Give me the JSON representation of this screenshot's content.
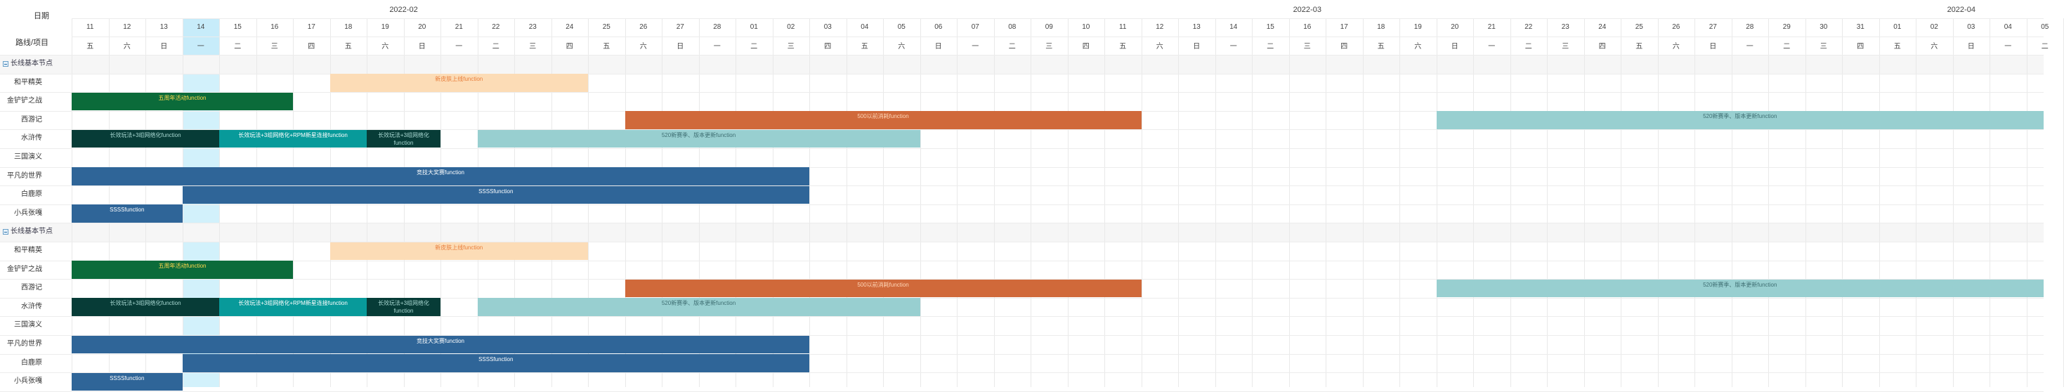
{
  "header": {
    "date_label": "日期",
    "project_label": "路线/项目",
    "months": [
      {
        "label": "2022-02",
        "start_index": 0,
        "end_index": 17
      },
      {
        "label": "2022-03",
        "start_index": 18,
        "end_index": 48
      },
      {
        "label": "2022-04",
        "start_index": 49,
        "end_index": 53
      }
    ]
  },
  "days": [
    {
      "d": "11",
      "w": "五"
    },
    {
      "d": "12",
      "w": "六"
    },
    {
      "d": "13",
      "w": "日"
    },
    {
      "d": "14",
      "w": "一"
    },
    {
      "d": "15",
      "w": "二"
    },
    {
      "d": "16",
      "w": "三"
    },
    {
      "d": "17",
      "w": "四"
    },
    {
      "d": "18",
      "w": "五"
    },
    {
      "d": "19",
      "w": "六"
    },
    {
      "d": "20",
      "w": "日"
    },
    {
      "d": "21",
      "w": "一"
    },
    {
      "d": "22",
      "w": "二"
    },
    {
      "d": "23",
      "w": "三"
    },
    {
      "d": "24",
      "w": "四"
    },
    {
      "d": "25",
      "w": "五"
    },
    {
      "d": "26",
      "w": "六"
    },
    {
      "d": "27",
      "w": "日"
    },
    {
      "d": "28",
      "w": "一"
    },
    {
      "d": "01",
      "w": "二"
    },
    {
      "d": "02",
      "w": "三"
    },
    {
      "d": "03",
      "w": "四"
    },
    {
      "d": "04",
      "w": "五"
    },
    {
      "d": "05",
      "w": "六"
    },
    {
      "d": "06",
      "w": "日"
    },
    {
      "d": "07",
      "w": "一"
    },
    {
      "d": "08",
      "w": "二"
    },
    {
      "d": "09",
      "w": "三"
    },
    {
      "d": "10",
      "w": "四"
    },
    {
      "d": "11",
      "w": "五"
    },
    {
      "d": "12",
      "w": "六"
    },
    {
      "d": "13",
      "w": "日"
    },
    {
      "d": "14",
      "w": "一"
    },
    {
      "d": "15",
      "w": "二"
    },
    {
      "d": "16",
      "w": "三"
    },
    {
      "d": "17",
      "w": "四"
    },
    {
      "d": "18",
      "w": "五"
    },
    {
      "d": "19",
      "w": "六"
    },
    {
      "d": "20",
      "w": "日"
    },
    {
      "d": "21",
      "w": "一"
    },
    {
      "d": "22",
      "w": "二"
    },
    {
      "d": "23",
      "w": "三"
    },
    {
      "d": "24",
      "w": "四"
    },
    {
      "d": "25",
      "w": "五"
    },
    {
      "d": "26",
      "w": "六"
    },
    {
      "d": "27",
      "w": "日"
    },
    {
      "d": "28",
      "w": "一"
    },
    {
      "d": "29",
      "w": "二"
    },
    {
      "d": "30",
      "w": "三"
    },
    {
      "d": "31",
      "w": "四"
    },
    {
      "d": "01",
      "w": "五"
    },
    {
      "d": "02",
      "w": "六"
    },
    {
      "d": "03",
      "w": "日"
    },
    {
      "d": "04",
      "w": "一"
    },
    {
      "d": "05",
      "w": "二"
    }
  ],
  "today_index": 3,
  "watermark_text": "",
  "sections": [
    {
      "label": "长线基本节点",
      "rows": [
        {
          "label": "和平精英",
          "bars": [
            {
              "start": 7,
              "end": 13,
              "text": "新皮肤上线function",
              "color": "#fcdcb6",
              "text_color": "#e87d3a"
            }
          ]
        },
        {
          "label": "金铲铲之战",
          "bars": [
            {
              "start": 0,
              "end": 5,
              "text": "五周年活动function",
              "color": "#0b6b3a",
              "text_color": "#ffd84d"
            }
          ]
        },
        {
          "label": "西游记",
          "bars": [
            {
              "start": 15,
              "end": 28,
              "text": "500以前消耗function",
              "color": "#d0693a",
              "text_color": "#ffd7b8"
            },
            {
              "start": 37,
              "end": 53,
              "text": "520新赛季、版本更新function",
              "color": "#98cfd0",
              "text_color": "#3f6f73"
            }
          ]
        },
        {
          "label": "水浒传",
          "bars": [
            {
              "start": 0,
              "end": 3,
              "text": "长效玩法+3组网络化function",
              "color": "#073c37",
              "text_color": "#a8d8d2"
            },
            {
              "start": 4,
              "end": 7,
              "text": "长效玩法+3组网络化+RPM新星连接function",
              "color": "#089a9a",
              "text_color": "#ffffff"
            },
            {
              "start": 8,
              "end": 9,
              "text": "长效玩法+3组网络化function",
              "color": "#073c37",
              "text_color": "#a8d8d2",
              "wrap": true
            },
            {
              "start": 11,
              "end": 22,
              "text": "520新赛季、版本更新function",
              "color": "#98cfd0",
              "text_color": "#3f6f73"
            }
          ]
        },
        {
          "label": "三国演义",
          "bars": []
        },
        {
          "label": "平凡的世界",
          "bars": [
            {
              "start": 0,
              "end": 19,
              "text": "竞技大奖赛function",
              "color": "#2f6598",
              "text_color": "#ffffff"
            }
          ]
        },
        {
          "label": "白鹿原",
          "bars": [
            {
              "start": 3,
              "end": 19,
              "text": "SSSSfunction",
              "color": "#2f6598",
              "text_color": "#ffffff"
            }
          ]
        },
        {
          "label": "小兵张嘎",
          "bars": [
            {
              "start": 0,
              "end": 2,
              "text": "SSSSfunction",
              "color": "#2f6598",
              "text_color": "#ffffff"
            }
          ]
        }
      ]
    },
    {
      "label": "长线基本节点",
      "rows": [
        {
          "label": "和平精英",
          "bars": [
            {
              "start": 7,
              "end": 13,
              "text": "新皮肤上线function",
              "color": "#fcdcb6",
              "text_color": "#e87d3a"
            }
          ]
        },
        {
          "label": "金铲铲之战",
          "bars": [
            {
              "start": 0,
              "end": 5,
              "text": "五周年活动function",
              "color": "#0b6b3a",
              "text_color": "#ffd84d"
            }
          ]
        },
        {
          "label": "西游记",
          "bars": [
            {
              "start": 15,
              "end": 28,
              "text": "500以前消耗function",
              "color": "#d0693a",
              "text_color": "#ffd7b8"
            },
            {
              "start": 37,
              "end": 53,
              "text": "520新赛季、版本更新function",
              "color": "#98cfd0",
              "text_color": "#3f6f73"
            }
          ]
        },
        {
          "label": "水浒传",
          "bars": [
            {
              "start": 0,
              "end": 3,
              "text": "长效玩法+3组网络化function",
              "color": "#073c37",
              "text_color": "#a8d8d2"
            },
            {
              "start": 4,
              "end": 7,
              "text": "长效玩法+3组网络化+RPM新星连接function",
              "color": "#089a9a",
              "text_color": "#ffffff"
            },
            {
              "start": 8,
              "end": 9,
              "text": "长效玩法+3组网络化function",
              "color": "#073c37",
              "text_color": "#a8d8d2",
              "wrap": true
            },
            {
              "start": 11,
              "end": 22,
              "text": "520新赛季、版本更新function",
              "color": "#98cfd0",
              "text_color": "#3f6f73"
            }
          ]
        },
        {
          "label": "三国演义",
          "bars": []
        },
        {
          "label": "平凡的世界",
          "bars": [
            {
              "start": 0,
              "end": 19,
              "text": "竞技大奖赛function",
              "color": "#2f6598",
              "text_color": "#ffffff"
            }
          ]
        },
        {
          "label": "白鹿原",
          "bars": [
            {
              "start": 3,
              "end": 19,
              "text": "SSSSfunction",
              "color": "#2f6598",
              "text_color": "#ffffff"
            }
          ]
        },
        {
          "label": "小兵张嘎",
          "bars": [
            {
              "start": 0,
              "end": 2,
              "text": "SSSSfunction",
              "color": "#2f6598",
              "text_color": "#ffffff"
            }
          ]
        }
      ]
    }
  ]
}
